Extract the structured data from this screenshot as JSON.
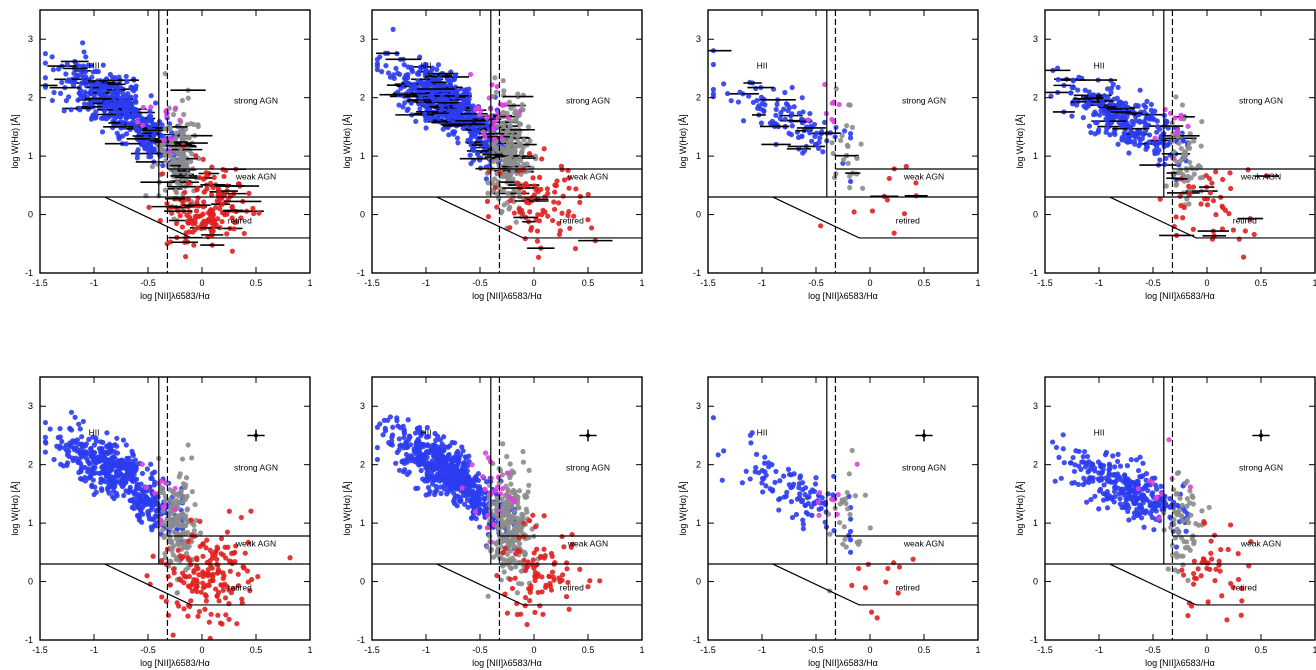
{
  "chart_data": {
    "type": "scatter",
    "panel_count": 8,
    "xlabel": "log [NII]λ6583/Hα",
    "ylabel_top_row": "log W(Hα) [Å]",
    "ylabel_bottom_row": "log W(Hα) [Å]",
    "xlim": [
      -1.5,
      1.0
    ],
    "ylim": [
      -1,
      3.5
    ],
    "x_ticks": [
      "-1.5",
      "-1",
      "-0.5",
      "0",
      "0.5",
      "1"
    ],
    "y_ticks": [
      "-1",
      "0",
      "1",
      "2",
      "3"
    ],
    "region_labels": {
      "hii": "HII",
      "strong_agn": "strong AGN",
      "weak_agn": "weak AGN",
      "retired": "retired"
    },
    "dividing_lines": {
      "dashed_vertical_x": -0.32,
      "solid_vertical_x": -0.4,
      "strong_weak_y": 0.78,
      "passive_y": 0.3,
      "retired_lower_y": -0.4
    },
    "series_colors": {
      "hii": "#2b3cf0",
      "composite": "#8c8c8c",
      "transition": "#e040e0",
      "agn": "#e02020",
      "error_bar": "#000000"
    },
    "grid": false,
    "panels": [
      {
        "row": 1,
        "col": 1,
        "dense": true,
        "counts": {
          "hii": 520,
          "composite": 160,
          "agn": 170,
          "transition": 12
        },
        "has_error_bars": true,
        "has_sample_error": false
      },
      {
        "row": 1,
        "col": 2,
        "dense": true,
        "counts": {
          "hii": 620,
          "composite": 260,
          "agn": 90,
          "transition": 25
        },
        "has_error_bars": true,
        "has_sample_error": false
      },
      {
        "row": 1,
        "col": 3,
        "dense": false,
        "counts": {
          "hii": 110,
          "composite": 25,
          "agn": 12,
          "transition": 8
        },
        "has_error_bars": true,
        "has_sample_error": false
      },
      {
        "row": 1,
        "col": 4,
        "dense": false,
        "counts": {
          "hii": 300,
          "composite": 60,
          "agn": 45,
          "transition": 10
        },
        "has_error_bars": true,
        "has_sample_error": false
      },
      {
        "row": 2,
        "col": 1,
        "dense": true,
        "counts": {
          "hii": 520,
          "composite": 160,
          "agn": 170,
          "transition": 12
        },
        "has_error_bars": false,
        "has_sample_error": true
      },
      {
        "row": 2,
        "col": 2,
        "dense": true,
        "counts": {
          "hii": 620,
          "composite": 260,
          "agn": 90,
          "transition": 25
        },
        "has_error_bars": false,
        "has_sample_error": true
      },
      {
        "row": 2,
        "col": 3,
        "dense": false,
        "counts": {
          "hii": 110,
          "composite": 25,
          "agn": 12,
          "transition": 8
        },
        "has_error_bars": false,
        "has_sample_error": true
      },
      {
        "row": 2,
        "col": 4,
        "dense": false,
        "counts": {
          "hii": 300,
          "composite": 60,
          "agn": 45,
          "transition": 10
        },
        "has_error_bars": false,
        "has_sample_error": true
      }
    ]
  }
}
